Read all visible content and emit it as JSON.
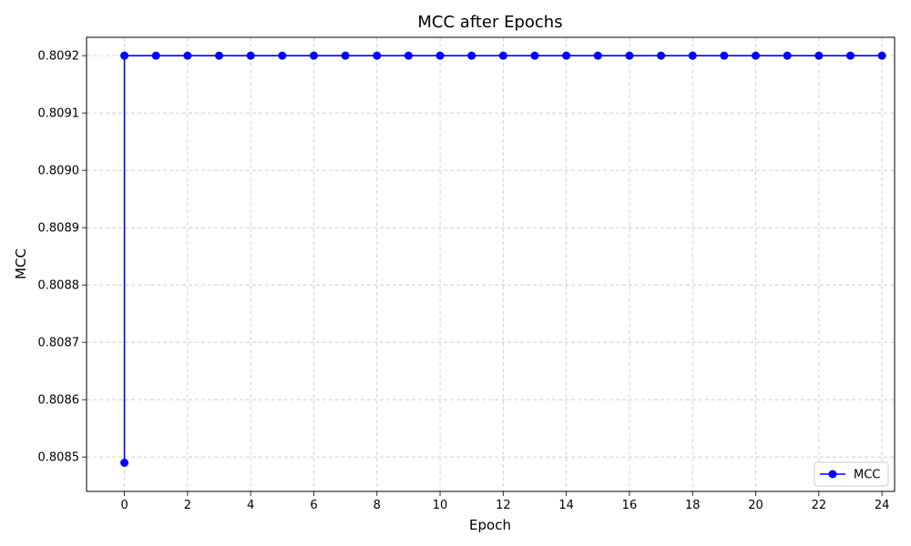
{
  "chart_data": {
    "type": "line",
    "title": "MCC after Epochs",
    "xlabel": "Epoch",
    "ylabel": "MCC",
    "xlim": [
      -1.2,
      24.4
    ],
    "ylim": [
      0.80844,
      0.809232
    ],
    "x_ticks": [
      0,
      2,
      4,
      6,
      8,
      10,
      12,
      14,
      16,
      18,
      20,
      22,
      24
    ],
    "y_ticks": [
      0.8085,
      0.8086,
      0.8087,
      0.8088,
      0.8089,
      0.809,
      0.8091,
      0.8092
    ],
    "y_tick_labels": [
      "0.8085",
      "0.8086",
      "0.8087",
      "0.8088",
      "0.8089",
      "0.8090",
      "0.8091",
      "0.8092"
    ],
    "grid": true,
    "legend_position": "bottom-right",
    "series": [
      {
        "name": "MCC",
        "color": "#0000ff",
        "marker": "circle",
        "points": [
          {
            "x": 0,
            "y": 0.80849
          },
          {
            "x": 0,
            "y": 0.8092
          },
          {
            "x": 1,
            "y": 0.8092
          },
          {
            "x": 2,
            "y": 0.8092
          },
          {
            "x": 3,
            "y": 0.8092
          },
          {
            "x": 4,
            "y": 0.8092
          },
          {
            "x": 5,
            "y": 0.8092
          },
          {
            "x": 6,
            "y": 0.8092
          },
          {
            "x": 7,
            "y": 0.8092
          },
          {
            "x": 8,
            "y": 0.8092
          },
          {
            "x": 9,
            "y": 0.8092
          },
          {
            "x": 10,
            "y": 0.8092
          },
          {
            "x": 11,
            "y": 0.8092
          },
          {
            "x": 12,
            "y": 0.8092
          },
          {
            "x": 13,
            "y": 0.8092
          },
          {
            "x": 14,
            "y": 0.8092
          },
          {
            "x": 15,
            "y": 0.8092
          },
          {
            "x": 16,
            "y": 0.8092
          },
          {
            "x": 17,
            "y": 0.8092
          },
          {
            "x": 18,
            "y": 0.8092
          },
          {
            "x": 19,
            "y": 0.8092
          },
          {
            "x": 20,
            "y": 0.8092
          },
          {
            "x": 21,
            "y": 0.8092
          },
          {
            "x": 22,
            "y": 0.8092
          },
          {
            "x": 23,
            "y": 0.8092
          },
          {
            "x": 24,
            "y": 0.8092
          }
        ]
      }
    ]
  }
}
